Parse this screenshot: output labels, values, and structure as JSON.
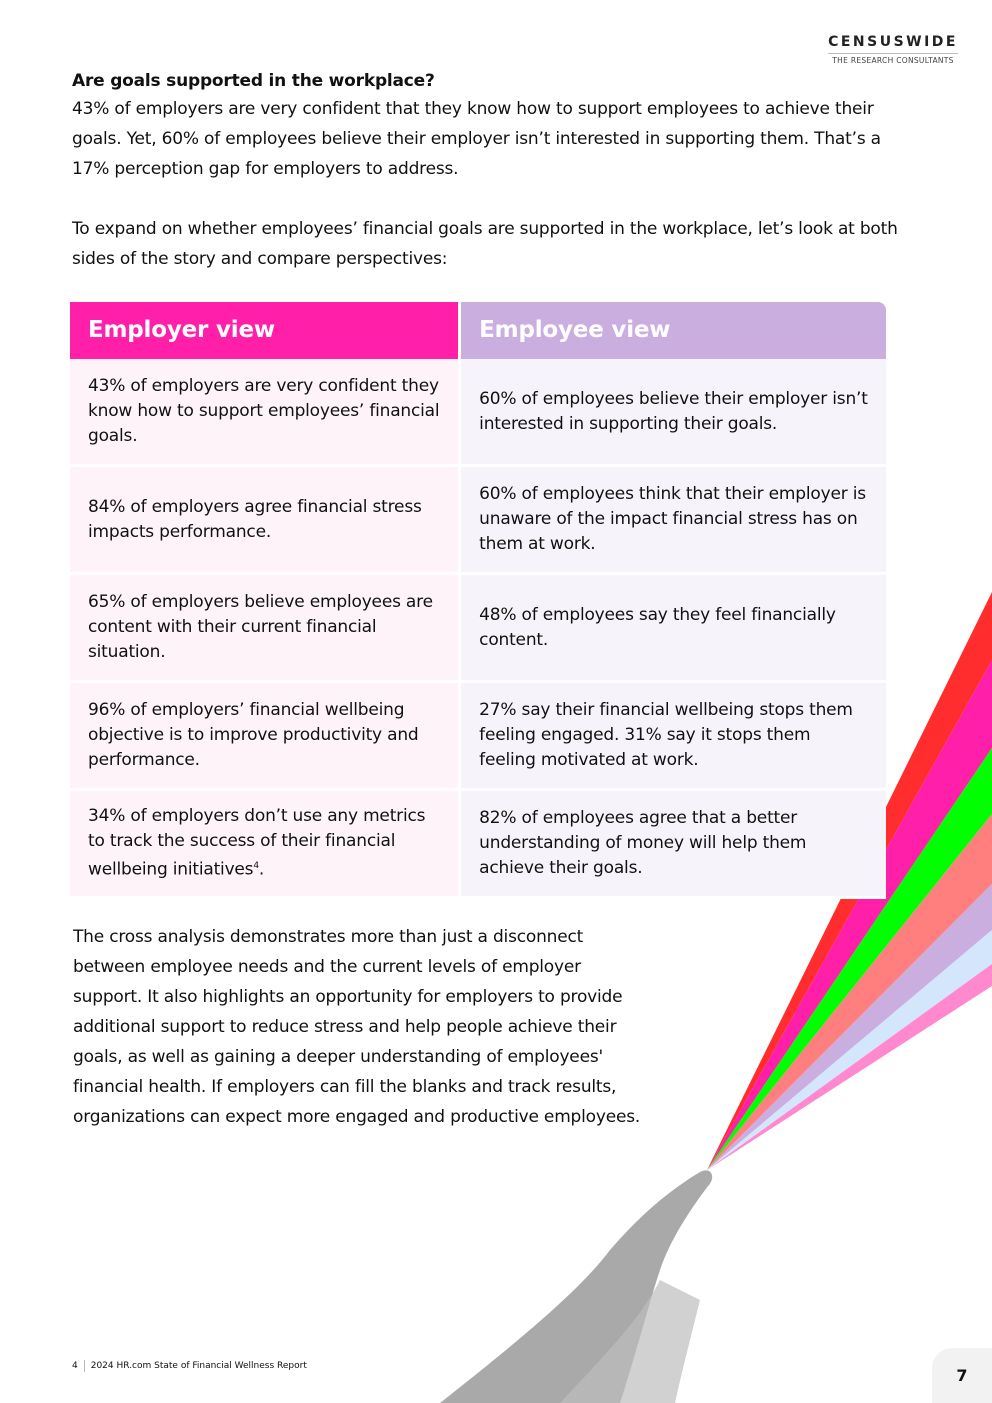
{
  "logo": {
    "name": "CENSUSWIDE",
    "tagline": "THE RESEARCH CONSULTANTS"
  },
  "intro": {
    "heading": "Are goals supported in the workplace?",
    "paragraph1": "43% of employers are very confident that they know how to support employees to achieve their goals. Yet, 60% of employees believe their employer isn’t interested in supporting them. That’s a 17% perception gap for employers to address.",
    "paragraph2": "To expand on whether employees’ financial goals are supported in the workplace, let’s look at both sides of the story and compare perspectives:"
  },
  "table": {
    "headers": [
      "Employer view",
      "Employee view"
    ],
    "rows": [
      [
        "43% of employers are very confident they know how to support employees’ financial goals.",
        "60% of employees believe their employer isn’t interested in supporting their goals."
      ],
      [
        "84% of employers agree financial stress impacts performance.",
        "60% of employees think that their employer is unaware of the impact financial stress has on them at work."
      ],
      [
        "65% of employers believe employees are content with their current financial situation.",
        "48% of employees say they feel financially content."
      ],
      [
        "96% of employers’ financial wellbeing objective is to improve productivity and performance.",
        "27% say their financial wellbeing stops them feeling engaged. 31% say it stops them feeling motivated at work."
      ],
      [
        "34% of employers don’t use any metrics to track the success of their financial wellbeing initiatives",
        "82% of employees agree that a better understanding of money will help them achieve their goals."
      ]
    ],
    "footnote_mark": "4"
  },
  "outro": "The cross analysis demonstrates more than just a disconnect between employee needs and the current levels of employer support. It also highlights an opportunity for employers to provide additional support to reduce stress and help people achieve their goals, as well as gaining a deeper understanding of employees' financial health. If employers can fill the blanks and track results, organizations can expect more engaged and productive employees.",
  "footer": {
    "chapter": "4",
    "title": "2024 HR.com State of Financial Wellness Report"
  },
  "page_number": "7",
  "colors": {
    "employer": "#ff1fa8",
    "employee": "#cbaee0",
    "rays": [
      "#ff2d2d",
      "#ff1fa8",
      "#00ff00",
      "#ff7f7f",
      "#cbaee0",
      "#d4e6fb",
      "#ff88cf"
    ]
  }
}
